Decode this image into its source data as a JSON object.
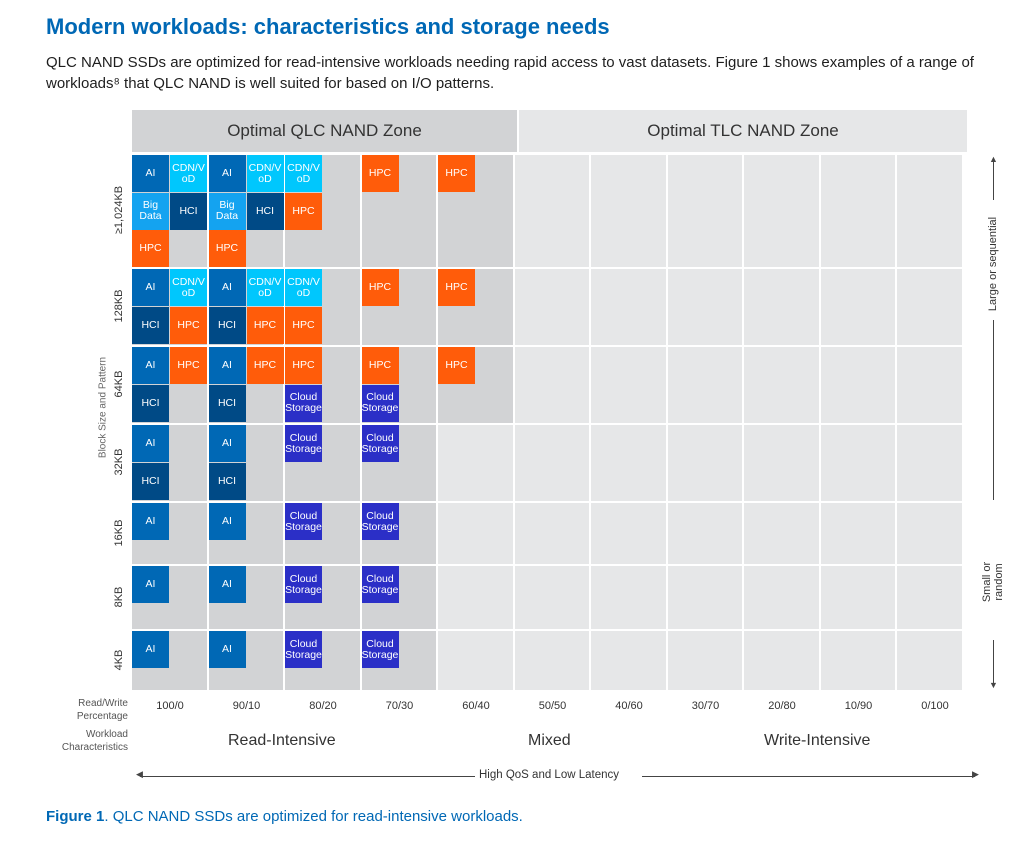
{
  "title": "Modern workloads: characteristics and storage needs",
  "intro": "QLC NAND SSDs are optimized for read-intensive workloads needing rapid access to vast datasets. Figure 1 shows examples of a range of workloads⁸ that QLC NAND is well suited for based on I/O patterns.",
  "zones": {
    "qlc": "Optimal QLC NAND Zone",
    "tlc": "Optimal TLC NAND Zone"
  },
  "colors": {
    "AI": "#0068b5",
    "CDN/VoD": "#00c7fd",
    "Big Data": "#14a3f0",
    "HCI": "#004a86",
    "HPC": "#ff5c0a",
    "Cloud Storage": "#2b2fc7",
    "qlc_bg": "#d2d3d5",
    "tlc_bg": "#e6e7e8",
    "accent": "#0068b5"
  },
  "y_axis_title": "Block Size and Pattern",
  "right_axis": {
    "top": "Large or sequential",
    "bottom": "Small or random"
  },
  "columns": [
    "100/0",
    "90/10",
    "80/20",
    "70/30",
    "60/40",
    "50/50",
    "40/60",
    "30/70",
    "20/80",
    "10/90",
    "0/100"
  ],
  "rows": [
    {
      "label": "≥1,024KB",
      "qlc_cols": 5,
      "cells": [
        [
          "AI",
          "CDN/VoD",
          "Big Data",
          "HCI",
          "HPC",
          null
        ],
        [
          "AI",
          "CDN/VoD",
          "Big Data",
          "HCI",
          "HPC",
          null
        ],
        [
          "CDN/VoD",
          null,
          "HPC",
          null
        ],
        [
          "HPC",
          null
        ],
        [
          "HPC",
          null
        ]
      ]
    },
    {
      "label": "128KB",
      "qlc_cols": 5,
      "cells": [
        [
          "AI",
          "CDN/VoD",
          "HCI",
          "HPC"
        ],
        [
          "AI",
          "CDN/VoD",
          "HCI",
          "HPC"
        ],
        [
          "CDN/VoD",
          null,
          "HPC",
          null
        ],
        [
          "HPC",
          null
        ],
        [
          "HPC",
          null
        ]
      ]
    },
    {
      "label": "64KB",
      "qlc_cols": 5,
      "cells": [
        [
          "AI",
          "HPC",
          "HCI",
          null
        ],
        [
          "AI",
          "HPC",
          "HCI",
          null
        ],
        [
          "HPC",
          null,
          "Cloud Storage",
          null
        ],
        [
          "HPC",
          null,
          "Cloud Storage",
          null
        ],
        [
          "HPC",
          null
        ]
      ]
    },
    {
      "label": "32KB",
      "qlc_cols": 4,
      "cells": [
        [
          "AI",
          null,
          "HCI",
          null
        ],
        [
          "AI",
          null,
          "HCI",
          null
        ],
        [
          "Cloud Storage",
          null
        ],
        [
          "Cloud Storage",
          null
        ]
      ]
    },
    {
      "label": "16KB",
      "qlc_cols": 4,
      "cells": [
        [
          "AI"
        ],
        [
          "AI"
        ],
        [
          "Cloud Storage"
        ],
        [
          "Cloud Storage"
        ]
      ]
    },
    {
      "label": "8KB",
      "qlc_cols": 4,
      "cells": [
        [
          "AI"
        ],
        [
          "AI"
        ],
        [
          "Cloud Storage"
        ],
        [
          "Cloud Storage"
        ]
      ]
    },
    {
      "label": "4KB",
      "qlc_cols": 4,
      "cells": [
        [
          "AI"
        ],
        [
          "AI"
        ],
        [
          "Cloud Storage"
        ],
        [
          "Cloud Storage"
        ]
      ]
    }
  ],
  "labels": {
    "rw": "Read/Write Percentage",
    "wc": "Workload Characteristics"
  },
  "workload": {
    "read": "Read-Intensive",
    "mixed": "Mixed",
    "write": "Write-Intensive"
  },
  "bottom_axis": "High QoS and Low Latency",
  "caption": {
    "prefix": "Figure 1",
    "text": ". QLC NAND SSDs are optimized for read-intensive workloads."
  }
}
